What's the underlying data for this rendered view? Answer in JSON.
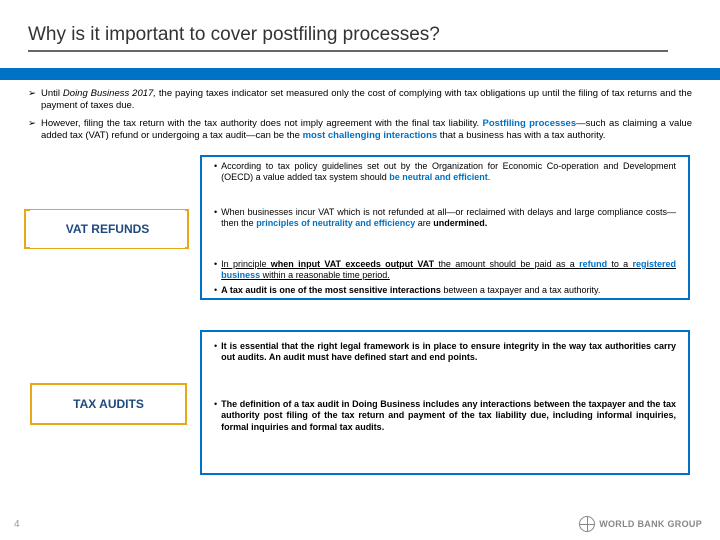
{
  "title": "Why is it important to cover postfiling processes?",
  "bullets": {
    "b1_pre": "Until ",
    "b1_em": "Doing Business 2017,",
    "b1_post": " the paying taxes indicator set measured only the cost of complying with tax obligations up until the filing of tax returns and the payment of taxes due.",
    "b2_pre": "However, filing the tax return with the tax authority does not imply agreement with the final tax liability. ",
    "b2_bold1": "Postfiling processes",
    "b2_mid": "—such as claiming a value added tax (VAT) refund or undergoing a tax audit—can be the ",
    "b2_bold2": "most challenging interactions",
    "b2_post": " that a business has with a tax authority."
  },
  "labels": {
    "vat": "VAT REFUNDS",
    "audit": "TAX AUDITS"
  },
  "vat": {
    "p1_a": "According to tax policy guidelines set out by the Organization for Economic Co-operation and Development (OECD) a value added tax system should ",
    "p1_b": "be neutral and efficient",
    "p1_c": ".",
    "p2_a": "When businesses incur VAT which is not refunded at all—or reclaimed with delays and large compliance costs—then the ",
    "p2_b": "principles of neutrality and efficiency",
    "p2_c": " are ",
    "p2_d": "undermined.",
    "p3_a": "In principle ",
    "p3_b": "when input VAT exceeds output VAT",
    "p3_c": " the amount should be paid as a ",
    "p3_d": "refund",
    "p3_e": " to a ",
    "p3_f": "registered business",
    "p3_g": " within a reasonable time period.",
    "p4_a": "A ",
    "p4_b": "tax audit is one of the most sensitive interactions",
    "p4_c": " between a taxpayer and a tax authority."
  },
  "audit": {
    "p1_a": "It is essential that the ",
    "p1_b": "right legal framework",
    "p1_c": " is in place to ",
    "p1_d": "ensure integrity",
    "p1_e": " in the way tax authorities carry out audits. An audit must have defined start and end points.",
    "p2_a": "The definition of a tax audit in ",
    "p2_b": "Doing Business",
    "p2_c": " includes any interactions between the taxpayer and the tax authority post filing of the tax return and payment of the tax liability due, including informal inquiries, formal inquiries and formal tax audits."
  },
  "footer": {
    "brand": "WORLD BANK GROUP",
    "page": "4"
  },
  "colors": {
    "accent_blue": "#0072c6",
    "accent_orange": "#e6a817",
    "text_dark": "#1f497d"
  }
}
